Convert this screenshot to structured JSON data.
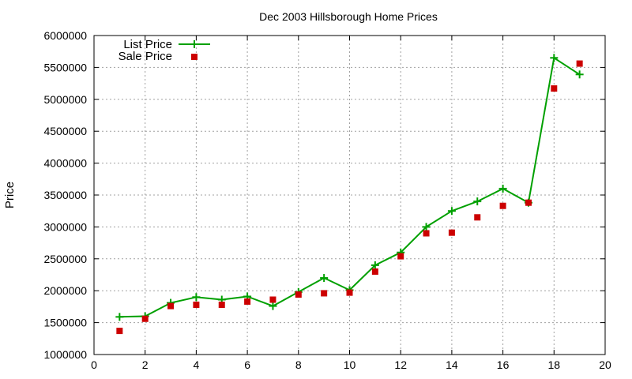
{
  "chart_data": {
    "type": "line",
    "title": "Dec 2003 Hillsborough Home Prices",
    "xlabel": "",
    "ylabel": "Price",
    "xlim": [
      0,
      20
    ],
    "ylim": [
      1000000,
      6000000
    ],
    "x_ticks": [
      "0",
      "2",
      "4",
      "6",
      "8",
      "10",
      "12",
      "14",
      "16",
      "18",
      "20"
    ],
    "y_ticks": [
      "1000000",
      "1500000",
      "2000000",
      "2500000",
      "3000000",
      "3500000",
      "4000000",
      "4500000",
      "5000000",
      "5500000",
      "6000000"
    ],
    "grid": true,
    "legend_position": "top-left",
    "series": [
      {
        "name": "List Price",
        "style": "line-with-plus-markers",
        "color": "#00a000",
        "x": [
          1,
          2,
          3,
          4,
          5,
          6,
          7,
          8,
          9,
          10,
          11,
          12,
          13,
          14,
          15,
          16,
          17,
          18,
          19
        ],
        "values": [
          1590000,
          1600000,
          1810000,
          1900000,
          1860000,
          1910000,
          1760000,
          1980000,
          2200000,
          2010000,
          2400000,
          2600000,
          3000000,
          3250000,
          3400000,
          3600000,
          3380000,
          5650000,
          5390000
        ]
      },
      {
        "name": "Sale Price",
        "style": "square-markers",
        "color": "#cc0000",
        "x": [
          1,
          2,
          3,
          4,
          5,
          6,
          7,
          8,
          9,
          10,
          11,
          12,
          13,
          14,
          15,
          16,
          17,
          18,
          19
        ],
        "values": [
          1370000,
          1560000,
          1760000,
          1780000,
          1780000,
          1830000,
          1860000,
          1940000,
          1960000,
          1970000,
          2300000,
          2540000,
          2900000,
          2910000,
          3150000,
          3330000,
          3380000,
          5170000,
          5560000
        ]
      }
    ]
  }
}
